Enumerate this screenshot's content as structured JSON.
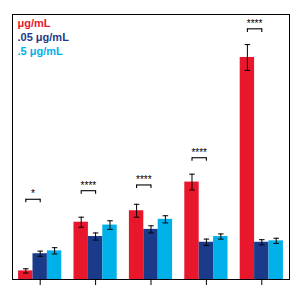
{
  "chart_data": {
    "type": "bar",
    "categories": [
      null,
      null,
      null,
      null,
      null
    ],
    "series": [
      {
        "name": "μg/mL",
        "color": "#e8172c",
        "values": [
          0.06,
          0.4,
          0.48,
          0.68,
          1.55
        ],
        "errors": [
          0.015,
          0.035,
          0.045,
          0.055,
          0.09
        ]
      },
      {
        "name": ".05 μg/mL",
        "color": "#1a3a8a",
        "values": [
          0.18,
          0.3,
          0.35,
          0.26,
          0.26
        ],
        "errors": [
          0.018,
          0.025,
          0.025,
          0.022,
          0.018
        ]
      },
      {
        "name": ".5 μg/mL",
        "color": "#00b0e8",
        "values": [
          0.2,
          0.38,
          0.42,
          0.3,
          0.27
        ],
        "errors": [
          0.022,
          0.03,
          0.025,
          0.018,
          0.018
        ]
      }
    ],
    "ylim": [
      0,
      1.85
    ],
    "grid": false,
    "tick_labels": false,
    "legend": "upper left",
    "annotations": [
      {
        "text": "*",
        "category": 0,
        "y": 0.56
      },
      {
        "text": "****",
        "category": 1,
        "y": 0.62
      },
      {
        "text": "****",
        "category": 2,
        "y": 0.66
      },
      {
        "text": "****",
        "category": 3,
        "y": 0.85
      },
      {
        "text": "****",
        "category": 4,
        "y": 1.75
      }
    ]
  }
}
